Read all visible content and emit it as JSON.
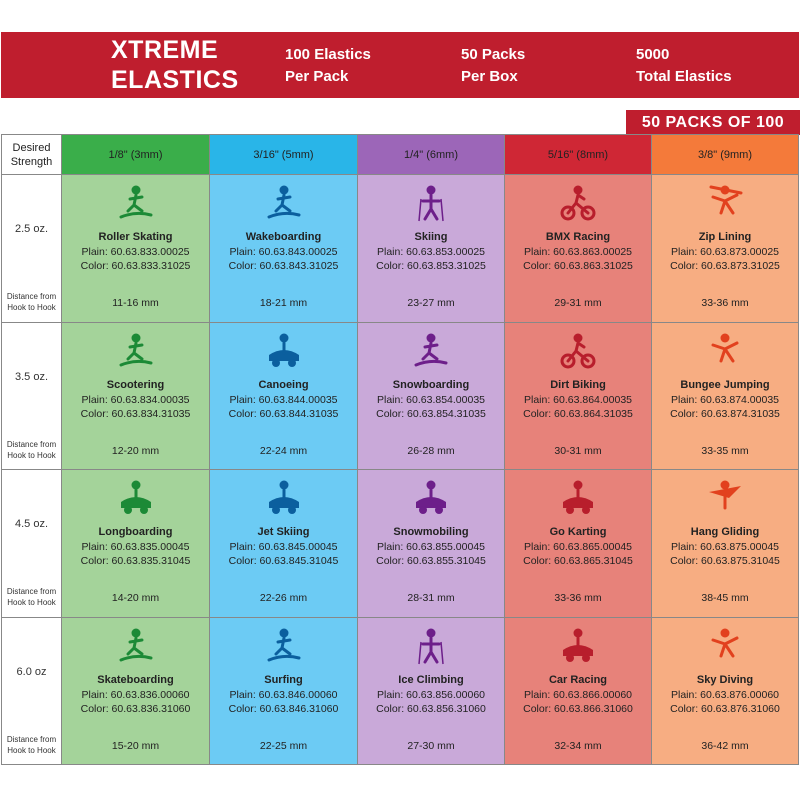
{
  "header": {
    "brand_line1": "XTREME",
    "brand_line2": "ELASTICS",
    "stat1_line1": "100 Elastics",
    "stat1_line2": "Per Pack",
    "stat2_line1": "50 Packs",
    "stat2_line2": "Per Box",
    "stat3_line1": "5000",
    "stat3_line2": "Total Elastics",
    "tag": "50 PACKS OF 100"
  },
  "colors": {
    "banner": "#bf1e2e",
    "col_headers": [
      "#3aae4a",
      "#29b5e8",
      "#9c66b8",
      "#cf2735",
      "#f47a3a"
    ],
    "col_bodies": [
      "#a4d39a",
      "#6ccbf4",
      "#c9a9d9",
      "#e7827a",
      "#f7ad82"
    ],
    "icon_colors": [
      "#1c8a36",
      "#0b5f9e",
      "#6d1f8a",
      "#b81e2c",
      "#e2411e"
    ]
  },
  "table": {
    "corner_line1": "Desired",
    "corner_line2": "Strength",
    "distance_line1": "Distance from",
    "distance_line2": "Hook to Hook",
    "columns": [
      "1/8\" (3mm)",
      "3/16\" (5mm)",
      "1/4\" (6mm)",
      "5/16\" (8mm)",
      "3/8\" (9mm)"
    ],
    "rows": [
      {
        "strength": "2.5 oz.",
        "cells": [
          {
            "icon": "roller-skater-icon",
            "name": "Roller Skating",
            "plain": "Plain: 60.63.833.00025",
            "color": "Color: 60.63.833.31025",
            "length": "11-16 mm"
          },
          {
            "icon": "wakeboarder-icon",
            "name": "Wakeboarding",
            "plain": "Plain: 60.63.843.00025",
            "color": "Color: 60.63.843.31025",
            "length": "18-21 mm"
          },
          {
            "icon": "skier-icon",
            "name": "Skiing",
            "plain": "Plain: 60.63.853.00025",
            "color": "Color: 60.63.853.31025",
            "length": "23-27 mm"
          },
          {
            "icon": "bmx-rider-icon",
            "name": "BMX Racing",
            "plain": "Plain: 60.63.863.00025",
            "color": "Color: 60.63.863.31025",
            "length": "29-31 mm"
          },
          {
            "icon": "zip-liner-icon",
            "name": "Zip Lining",
            "plain": "Plain: 60.63.873.00025",
            "color": "Color: 60.63.873.31025",
            "length": "33-36 mm"
          }
        ]
      },
      {
        "strength": "3.5 oz.",
        "cells": [
          {
            "icon": "scooter-rider-icon",
            "name": "Scootering",
            "plain": "Plain: 60.63.834.00035",
            "color": "Color: 60.63.834.31035",
            "length": "12-20 mm"
          },
          {
            "icon": "canoeist-icon",
            "name": "Canoeing",
            "plain": "Plain: 60.63.844.00035",
            "color": "Color: 60.63.844.31035",
            "length": "22-24 mm"
          },
          {
            "icon": "snowboarder-icon",
            "name": "Snowboarding",
            "plain": "Plain: 60.63.854.00035",
            "color": "Color: 60.63.854.31035",
            "length": "26-28 mm"
          },
          {
            "icon": "dirt-biker-icon",
            "name": "Dirt Biking",
            "plain": "Plain: 60.63.864.00035",
            "color": "Color: 60.63.864.31035",
            "length": "30-31 mm"
          },
          {
            "icon": "bungee-jumper-icon",
            "name": "Bungee Jumping",
            "plain": "Plain: 60.63.874.00035",
            "color": "Color: 60.63.874.31035",
            "length": "33-35 mm"
          }
        ]
      },
      {
        "strength": "4.5 oz.",
        "cells": [
          {
            "icon": "longboarder-icon",
            "name": "Longboarding",
            "plain": "Plain: 60.63.835.00045",
            "color": "Color: 60.63.835.31045",
            "length": "14-20 mm"
          },
          {
            "icon": "jet-skier-icon",
            "name": "Jet Skiing",
            "plain": "Plain: 60.63.845.00045",
            "color": "Color: 60.63.845.31045",
            "length": "22-26 mm"
          },
          {
            "icon": "snowmobile-icon",
            "name": "Snowmobiling",
            "plain": "Plain: 60.63.855.00045",
            "color": "Color: 60.63.855.31045",
            "length": "28-31 mm"
          },
          {
            "icon": "go-kart-icon",
            "name": "Go Karting",
            "plain": "Plain: 60.63.865.00045",
            "color": "Color: 60.63.865.31045",
            "length": "33-36 mm"
          },
          {
            "icon": "hang-glider-icon",
            "name": "Hang Gliding",
            "plain": "Plain: 60.63.875.00045",
            "color": "Color: 60.63.875.31045",
            "length": "38-45 mm"
          }
        ]
      },
      {
        "strength": "6.0 oz",
        "cells": [
          {
            "icon": "skateboarder-icon",
            "name": "Skateboarding",
            "plain": "Plain: 60.63.836.00060",
            "color": "Color: 60.63.836.31060",
            "length": "15-20 mm"
          },
          {
            "icon": "surfer-icon",
            "name": "Surfing",
            "plain": "Plain: 60.63.846.00060",
            "color": "Color: 60.63.846.31060",
            "length": "22-25 mm"
          },
          {
            "icon": "ice-climber-icon",
            "name": "Ice Climbing",
            "plain": "Plain: 60.63.856.00060",
            "color": "Color: 60.63.856.31060",
            "length": "27-30 mm"
          },
          {
            "icon": "race-car-icon",
            "name": "Car Racing",
            "plain": "Plain: 60.63.866.00060",
            "color": "Color: 60.63.866.31060",
            "length": "32-34 mm"
          },
          {
            "icon": "sky-diver-icon",
            "name": "Sky Diving",
            "plain": "Plain: 60.63.876.00060",
            "color": "Color: 60.63.876.31060",
            "length": "36-42 mm"
          }
        ]
      }
    ]
  }
}
